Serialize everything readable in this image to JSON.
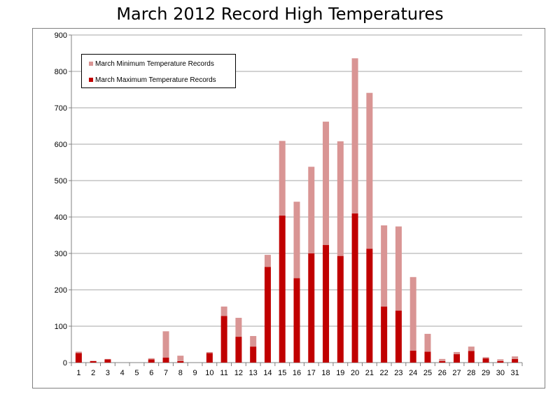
{
  "chart_data": {
    "type": "bar",
    "stacked": true,
    "title": "March 2012 Record High Temperatures",
    "xlabel": "",
    "ylabel": "",
    "ylim": [
      0,
      900
    ],
    "yticks": [
      0,
      100,
      200,
      300,
      400,
      500,
      600,
      700,
      800,
      900
    ],
    "grid": true,
    "legend_position": "top-left",
    "categories": [
      "1",
      "2",
      "3",
      "4",
      "5",
      "6",
      "7",
      "8",
      "9",
      "10",
      "11",
      "12",
      "13",
      "14",
      "15",
      "16",
      "17",
      "18",
      "19",
      "20",
      "21",
      "22",
      "23",
      "24",
      "25",
      "26",
      "27",
      "28",
      "29",
      "30",
      "31"
    ],
    "series": [
      {
        "name": "March Maximum Temperature Records",
        "color": "#c00000",
        "values": [
          26,
          4,
          9,
          0,
          0,
          9,
          14,
          4,
          0,
          26,
          128,
          71,
          44,
          263,
          404,
          232,
          300,
          323,
          293,
          410,
          313,
          154,
          143,
          33,
          30,
          4,
          23,
          32,
          12,
          4,
          10
        ]
      },
      {
        "name": "March Minimum Temperature Records",
        "color": "#d99594",
        "values": [
          4,
          1,
          1,
          0,
          0,
          3,
          72,
          15,
          0,
          3,
          26,
          52,
          29,
          33,
          205,
          210,
          238,
          339,
          315,
          426,
          428,
          223,
          231,
          202,
          49,
          6,
          6,
          12,
          3,
          5,
          7
        ]
      }
    ]
  }
}
